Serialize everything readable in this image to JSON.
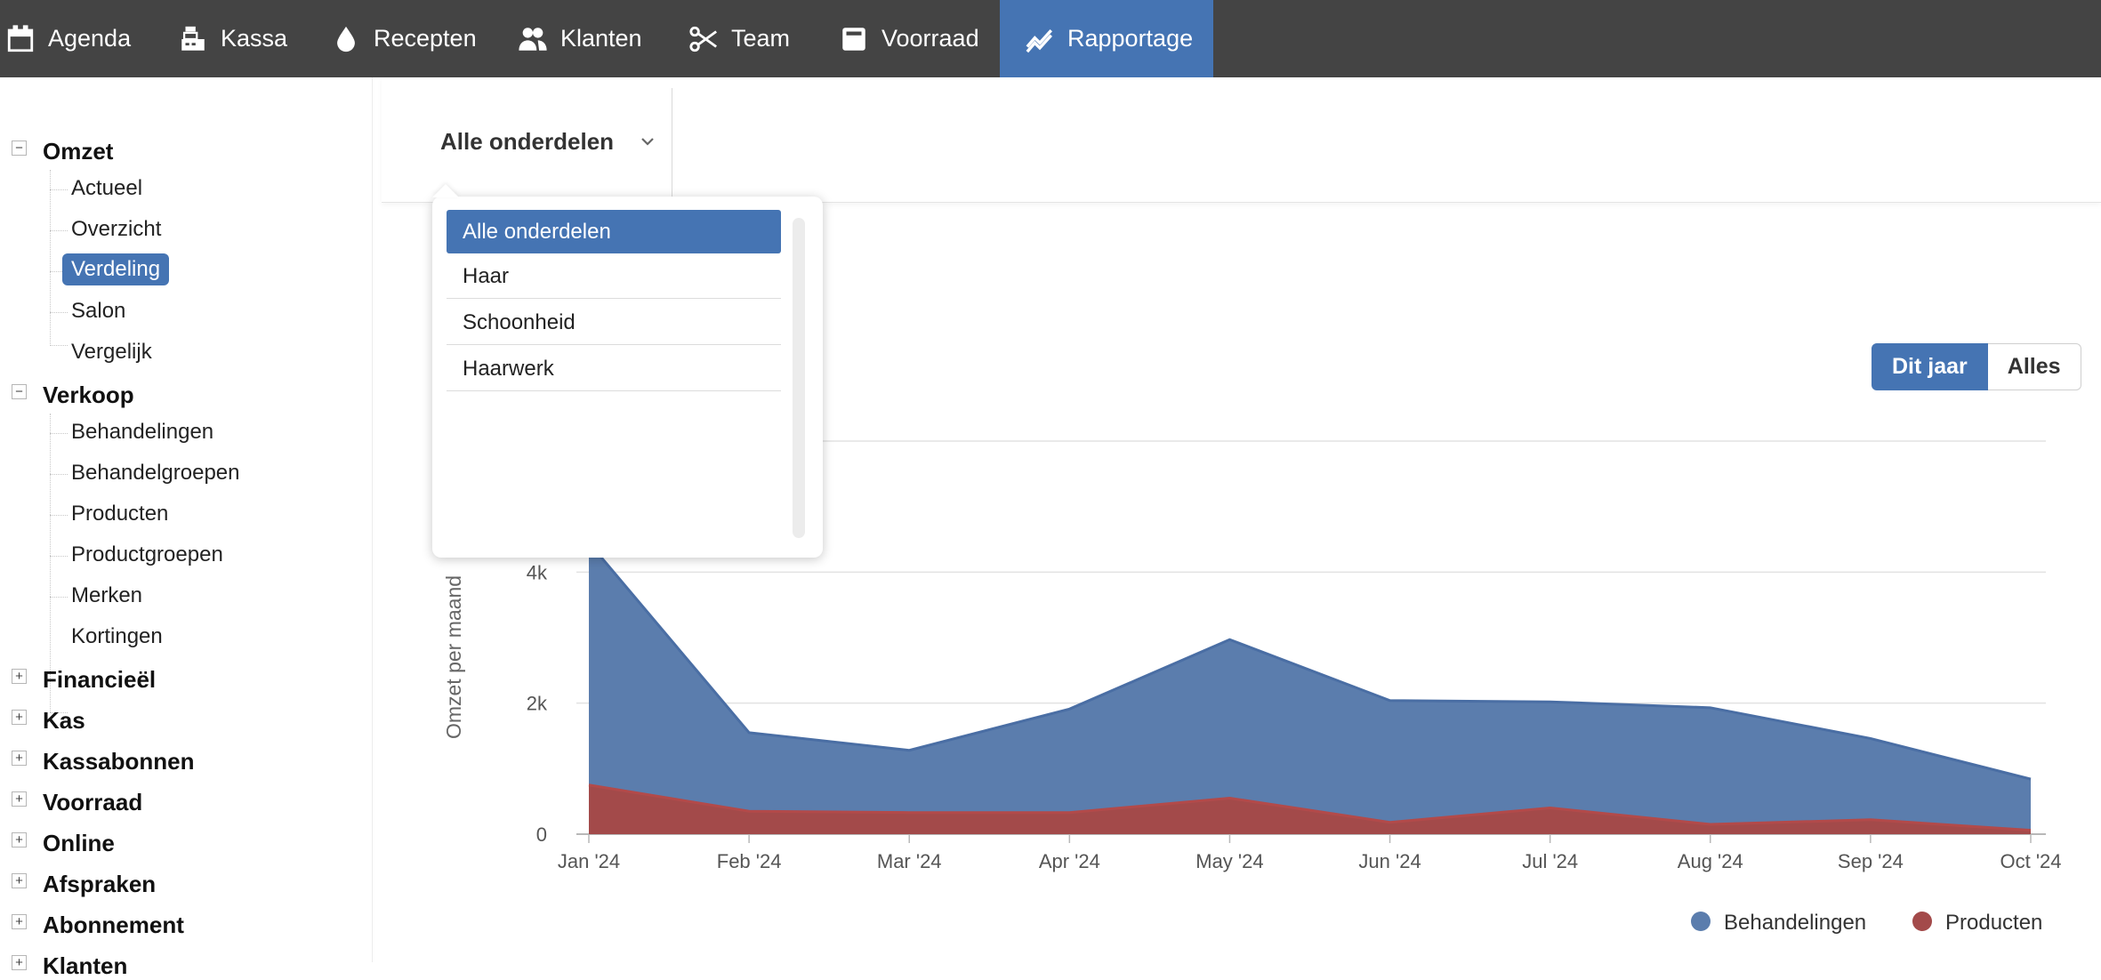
{
  "topnav": {
    "items": [
      {
        "label": "Agenda",
        "icon": "calendar-icon",
        "active": false
      },
      {
        "label": "Kassa",
        "icon": "cash-register-icon",
        "active": false
      },
      {
        "label": "Recepten",
        "icon": "drop-icon",
        "active": false
      },
      {
        "label": "Klanten",
        "icon": "users-icon",
        "active": false
      },
      {
        "label": "Team",
        "icon": "scissors-icon",
        "active": false
      },
      {
        "label": "Voorraad",
        "icon": "box-icon",
        "active": false
      },
      {
        "label": "Rapportage",
        "icon": "chart-line-icon",
        "active": true
      }
    ]
  },
  "sidebar": {
    "groups": [
      {
        "label": "Omzet",
        "expanded": true,
        "items": [
          "Actueel",
          "Overzicht",
          "Verdeling",
          "Salon",
          "Vergelijk"
        ],
        "selected": "Verdeling"
      },
      {
        "label": "Verkoop",
        "expanded": true,
        "items": [
          "Behandelingen",
          "Behandelgroepen",
          "Producten",
          "Productgroepen",
          "Merken",
          "Kortingen"
        ]
      },
      {
        "label": "Financieël",
        "expanded": false
      },
      {
        "label": "Kas",
        "expanded": false
      },
      {
        "label": "Kassabonnen",
        "expanded": false
      },
      {
        "label": "Voorraad",
        "expanded": false
      },
      {
        "label": "Online",
        "expanded": false
      },
      {
        "label": "Afspraken",
        "expanded": false
      },
      {
        "label": "Abonnement",
        "expanded": false
      },
      {
        "label": "Klanten",
        "expanded": false
      }
    ]
  },
  "filter": {
    "selected": "Alle onderdelen",
    "options": [
      "Alle onderdelen",
      "Haar",
      "Schoonheid",
      "Haarwerk"
    ]
  },
  "period": {
    "active_label": "Dit jaar",
    "other_label": "Alles"
  },
  "colors": {
    "nav_bg": "#444444",
    "accent": "#4574b3",
    "behandelingen": "#5b7dad",
    "producten": "#a34a4a"
  },
  "chart_data": {
    "type": "area",
    "stacked": true,
    "categories": [
      "Jan '24",
      "Feb '24",
      "Mar '24",
      "Apr '24",
      "May '24",
      "Jun '24",
      "Jul '24",
      "Aug '24",
      "Sep '24",
      "Oct '24"
    ],
    "series": [
      {
        "name": "Behandelingen",
        "values": [
          3700,
          1200,
          950,
          1580,
          2420,
          1860,
          1620,
          1780,
          1240,
          780
        ]
      },
      {
        "name": "Producten",
        "values": [
          750,
          350,
          330,
          330,
          550,
          180,
          400,
          150,
          220,
          60
        ]
      }
    ],
    "ylabel": "Omzet per maand",
    "yticks": [
      0,
      2000,
      4000
    ],
    "ytick_labels": [
      "0",
      "2k",
      "4k"
    ],
    "ylim": [
      0,
      6000
    ],
    "grid": true,
    "legend_position": "bottom-right"
  }
}
